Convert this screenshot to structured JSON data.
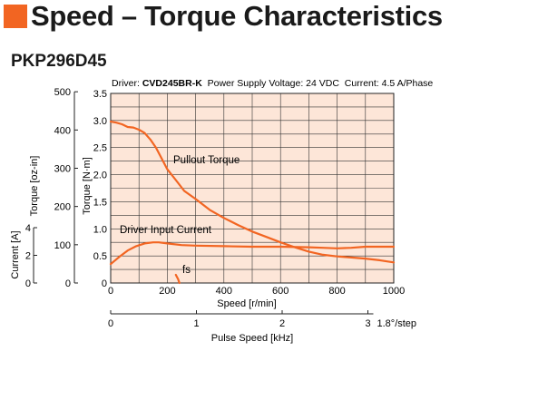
{
  "header": {
    "title": "Speed – Torque Characteristics",
    "model": "PKP296D45",
    "driver_prefix": "Driver: ",
    "driver_name": "CVD245BR-K",
    "conditions": "  Power Supply Voltage: 24 VDC  Current: 4.5 A/Phase"
  },
  "colors": {
    "accent": "#f26522",
    "plot_bg": "#fde6d8",
    "curve": "#f26522",
    "grid": "#333333"
  },
  "chart_data": {
    "type": "line",
    "x_axis": {
      "label": "Speed [r/min]",
      "range": [
        0,
        1000
      ],
      "ticks": [
        "0",
        "200",
        "400",
        "600",
        "800",
        "1000"
      ]
    },
    "x2_axis": {
      "label": "Pulse Speed [kHz]",
      "ticks": [
        "0",
        "1",
        "2",
        "3"
      ],
      "tick_values": [
        0,
        1,
        2,
        3
      ],
      "extra_label": "1.8°/step"
    },
    "y_axis_nm": {
      "label": "Torque [N·m]",
      "range": [
        0,
        3.5
      ],
      "ticks": [
        "0",
        "0.5",
        "1.0",
        "1.5",
        "2.0",
        "2.5",
        "3.0",
        "3.5"
      ]
    },
    "y_axis_ozin": {
      "label": "Torque [oz-in]",
      "ticks": [
        "0",
        "100",
        "200",
        "300",
        "400",
        "500"
      ],
      "tick_values": [
        0,
        100,
        200,
        300,
        400,
        500
      ]
    },
    "y_axis_current": {
      "label": "Current [A]",
      "ticks": [
        "0",
        "2",
        "4"
      ],
      "tick_values": [
        0,
        2,
        4
      ]
    },
    "grid": true,
    "series": [
      {
        "name": "Pullout Torque",
        "x": [
          0,
          20,
          40,
          60,
          80,
          100,
          120,
          140,
          160,
          180,
          200,
          230,
          260,
          300,
          350,
          400,
          450,
          500,
          550,
          600,
          650,
          700,
          750,
          800,
          850,
          900,
          950,
          1000
        ],
        "y": [
          2.98,
          2.96,
          2.93,
          2.88,
          2.87,
          2.83,
          2.77,
          2.65,
          2.5,
          2.3,
          2.1,
          1.9,
          1.7,
          1.55,
          1.35,
          1.2,
          1.07,
          0.95,
          0.85,
          0.75,
          0.66,
          0.58,
          0.52,
          0.49,
          0.47,
          0.45,
          0.42,
          0.38
        ]
      },
      {
        "name": "Driver Input Current",
        "x": [
          0,
          30,
          60,
          90,
          120,
          150,
          170,
          200,
          250,
          300,
          400,
          500,
          600,
          700,
          750,
          800,
          850,
          900,
          950,
          1000
        ],
        "y": [
          0.35,
          0.48,
          0.6,
          0.68,
          0.73,
          0.75,
          0.75,
          0.73,
          0.7,
          0.69,
          0.68,
          0.67,
          0.67,
          0.66,
          0.65,
          0.64,
          0.65,
          0.67,
          0.67,
          0.67
        ]
      },
      {
        "name": "fs",
        "x": [
          230,
          238,
          243
        ],
        "y": [
          0.15,
          0.07,
          0.0
        ]
      }
    ]
  }
}
